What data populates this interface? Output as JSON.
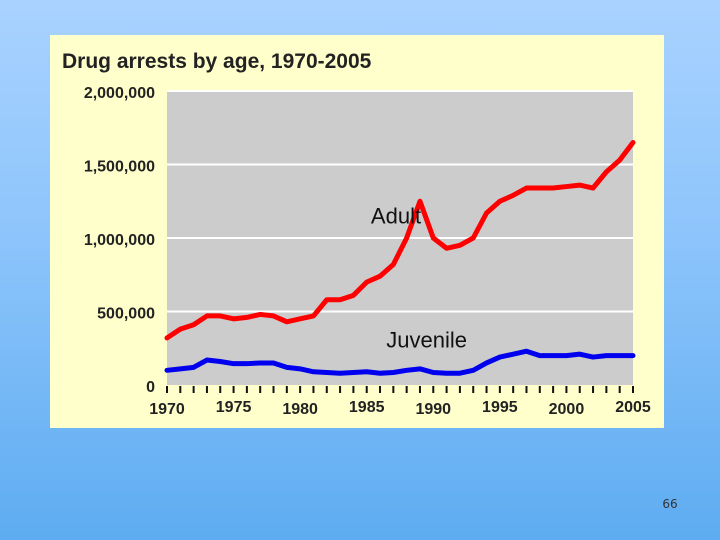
{
  "slide": {
    "number": "66"
  },
  "colors": {
    "background": "#8cc4fb",
    "figure_bg": "#ffffcc",
    "plot_bg": "#cccccc",
    "gridline": "#ffffff",
    "adult": "#ff0000",
    "juvenile": "#0000ee"
  },
  "chart_data": {
    "type": "line",
    "title": "Drug arrests by age, 1970-2005",
    "xlabel": "",
    "ylabel": "",
    "xlim": [
      1970,
      2005
    ],
    "ylim": [
      0,
      2000000
    ],
    "grid": true,
    "legend": "none",
    "y_ticks": [
      {
        "value": 0,
        "label": "0"
      },
      {
        "value": 500000,
        "label": "500,000"
      },
      {
        "value": 1000000,
        "label": "1,000,000"
      },
      {
        "value": 1500000,
        "label": "1,500,000"
      },
      {
        "value": 2000000,
        "label": "2,000,000"
      }
    ],
    "x_ticks": [
      {
        "value": 1970,
        "label": "1970"
      },
      {
        "value": 1975,
        "label": "1975"
      },
      {
        "value": 1980,
        "label": "1980"
      },
      {
        "value": 1985,
        "label": "1985"
      },
      {
        "value": 1990,
        "label": "1990"
      },
      {
        "value": 1995,
        "label": "1995"
      },
      {
        "value": 2000,
        "label": "2000"
      },
      {
        "value": 2005,
        "label": "2005"
      }
    ],
    "x": [
      1970,
      1971,
      1972,
      1973,
      1974,
      1975,
      1976,
      1977,
      1978,
      1979,
      1980,
      1981,
      1982,
      1983,
      1984,
      1985,
      1986,
      1987,
      1988,
      1989,
      1990,
      1991,
      1992,
      1993,
      1994,
      1995,
      1996,
      1997,
      1998,
      1999,
      2000,
      2001,
      2002,
      2003,
      2004,
      2005
    ],
    "series": [
      {
        "name": "Adult",
        "label_at": [
          1987.2,
          1100000
        ],
        "color": "#ff0000",
        "values": [
          320000,
          380000,
          410000,
          470000,
          470000,
          450000,
          460000,
          480000,
          470000,
          430000,
          450000,
          470000,
          580000,
          580000,
          610000,
          700000,
          740000,
          820000,
          1000000,
          1250000,
          1000000,
          930000,
          950000,
          1000000,
          1170000,
          1250000,
          1290000,
          1340000,
          1340000,
          1340000,
          1350000,
          1360000,
          1340000,
          1450000,
          1530000,
          1650000
        ]
      },
      {
        "name": "Juvenile",
        "label_at": [
          1989.5,
          255000
        ],
        "color": "#0000ee",
        "values": [
          100000,
          110000,
          120000,
          170000,
          160000,
          145000,
          145000,
          150000,
          150000,
          120000,
          110000,
          90000,
          85000,
          80000,
          85000,
          90000,
          80000,
          85000,
          100000,
          110000,
          85000,
          80000,
          80000,
          100000,
          150000,
          190000,
          210000,
          230000,
          200000,
          200000,
          200000,
          210000,
          190000,
          200000,
          200000,
          200000
        ]
      }
    ]
  }
}
